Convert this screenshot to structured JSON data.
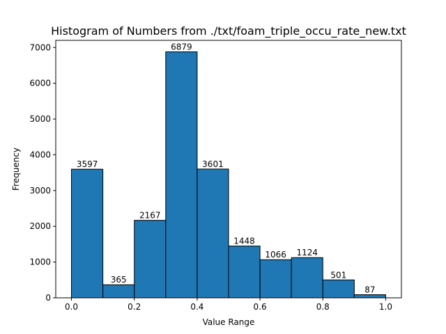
{
  "chart_data": {
    "type": "bar",
    "title": "Histogram of Numbers from ./txt/foam_triple_occu_rate_new.txt",
    "xlabel": "Value Range",
    "ylabel": "Frequency",
    "bin_edges": [
      0.0,
      0.1,
      0.2,
      0.3,
      0.4,
      0.5,
      0.6,
      0.7,
      0.8,
      0.9,
      1.0
    ],
    "values": [
      3597,
      365,
      2167,
      6879,
      3601,
      1448,
      1066,
      1124,
      501,
      87
    ],
    "xlim": [
      -0.05,
      1.05
    ],
    "ylim": [
      0,
      7200
    ],
    "x_ticks": [
      0.0,
      0.2,
      0.4,
      0.6,
      0.8,
      1.0
    ],
    "x_tick_labels": [
      "0.0",
      "0.2",
      "0.4",
      "0.6",
      "0.8",
      "1.0"
    ],
    "y_ticks": [
      0,
      1000,
      2000,
      3000,
      4000,
      5000,
      6000,
      7000
    ],
    "y_tick_labels": [
      "0",
      "1000",
      "2000",
      "3000",
      "4000",
      "5000",
      "6000",
      "7000"
    ],
    "grid": false,
    "bar_color": "#1f77b4",
    "edge_color": "#000000"
  }
}
